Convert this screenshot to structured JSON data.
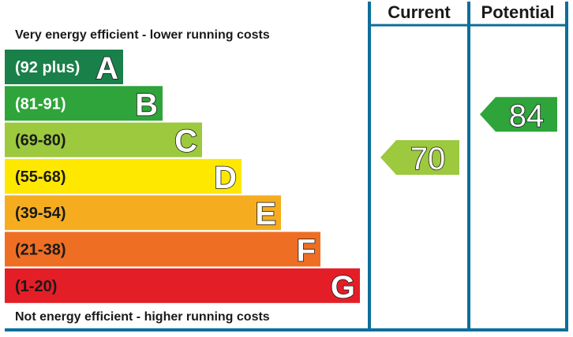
{
  "chart_data": {
    "type": "bar",
    "top_caption": "Very energy efficient - lower running costs",
    "bottom_caption": "Not energy efficient - higher running costs",
    "columns": [
      "Current",
      "Potential"
    ],
    "bands": [
      {
        "letter": "A",
        "range": "(92 plus)",
        "min": 92,
        "max": 100,
        "color": "#19804a"
      },
      {
        "letter": "B",
        "range": "(81-91)",
        "min": 81,
        "max": 91,
        "color": "#2ea43a"
      },
      {
        "letter": "C",
        "range": "(69-80)",
        "min": 69,
        "max": 80,
        "color": "#9cc93e"
      },
      {
        "letter": "D",
        "range": "(55-68)",
        "min": 55,
        "max": 68,
        "color": "#ffe800"
      },
      {
        "letter": "E",
        "range": "(39-54)",
        "min": 39,
        "max": 54,
        "color": "#f5ad1f"
      },
      {
        "letter": "F",
        "range": "(21-38)",
        "min": 21,
        "max": 38,
        "color": "#ee6e24"
      },
      {
        "letter": "G",
        "range": "(1-20)",
        "min": 1,
        "max": 20,
        "color": "#e41e26"
      }
    ],
    "ratings": [
      {
        "column": "Current",
        "value": 70,
        "band": "C",
        "color": "#9cc93e"
      },
      {
        "column": "Potential",
        "value": 84,
        "band": "B",
        "color": "#2ea43a"
      }
    ],
    "frame_color": "#0d6e99"
  }
}
